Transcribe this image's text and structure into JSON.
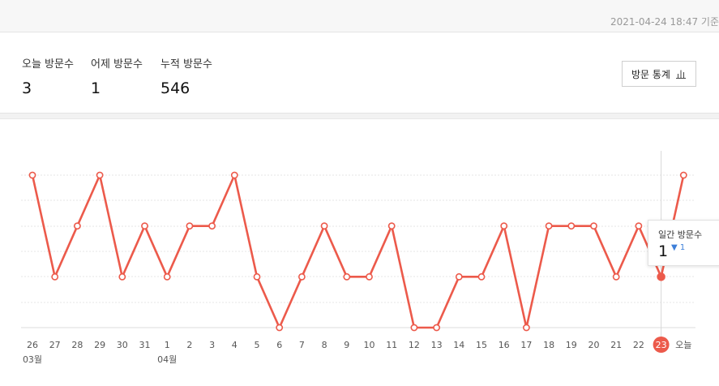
{
  "header": {
    "timestamp": "2021-04-24 18:47 기준"
  },
  "stats": {
    "today_label": "오늘 방문수",
    "today_value": "3",
    "yesterday_label": "어제 방문수",
    "yesterday_value": "1",
    "total_label": "누적 방문수",
    "total_value": "546",
    "button_label": "방문 통계",
    "button_icon": "bar-chart-icon"
  },
  "colors": {
    "line": "#ec5a4b",
    "grid": "#e6e6e6",
    "axis_text": "#555555",
    "highlight_bg": "#ec5a4b",
    "change_up": "#3d7fd9"
  },
  "chart_data": {
    "type": "line",
    "categories": [
      "26",
      "27",
      "28",
      "29",
      "30",
      "31",
      "1",
      "2",
      "3",
      "4",
      "5",
      "6",
      "7",
      "8",
      "9",
      "10",
      "11",
      "12",
      "13",
      "14",
      "15",
      "16",
      "17",
      "18",
      "19",
      "20",
      "21",
      "22",
      "23",
      "오늘"
    ],
    "month_labels": [
      {
        "index": 0,
        "label": "03월"
      },
      {
        "index": 6,
        "label": "04월"
      }
    ],
    "series": [
      {
        "values": [
          3,
          1,
          2,
          3,
          1,
          2,
          1,
          2,
          2,
          3,
          1,
          0,
          1,
          2,
          1,
          1,
          2,
          0,
          0,
          1,
          1,
          2,
          0,
          2,
          2,
          2,
          1,
          2,
          1,
          3
        ]
      }
    ],
    "ylim": [
      0,
      3
    ],
    "highlight_index": 28,
    "grid": true,
    "tooltip": {
      "label": "일간 방문수",
      "value": "1",
      "change": "1",
      "change_icon": "triangle-down-icon"
    }
  }
}
